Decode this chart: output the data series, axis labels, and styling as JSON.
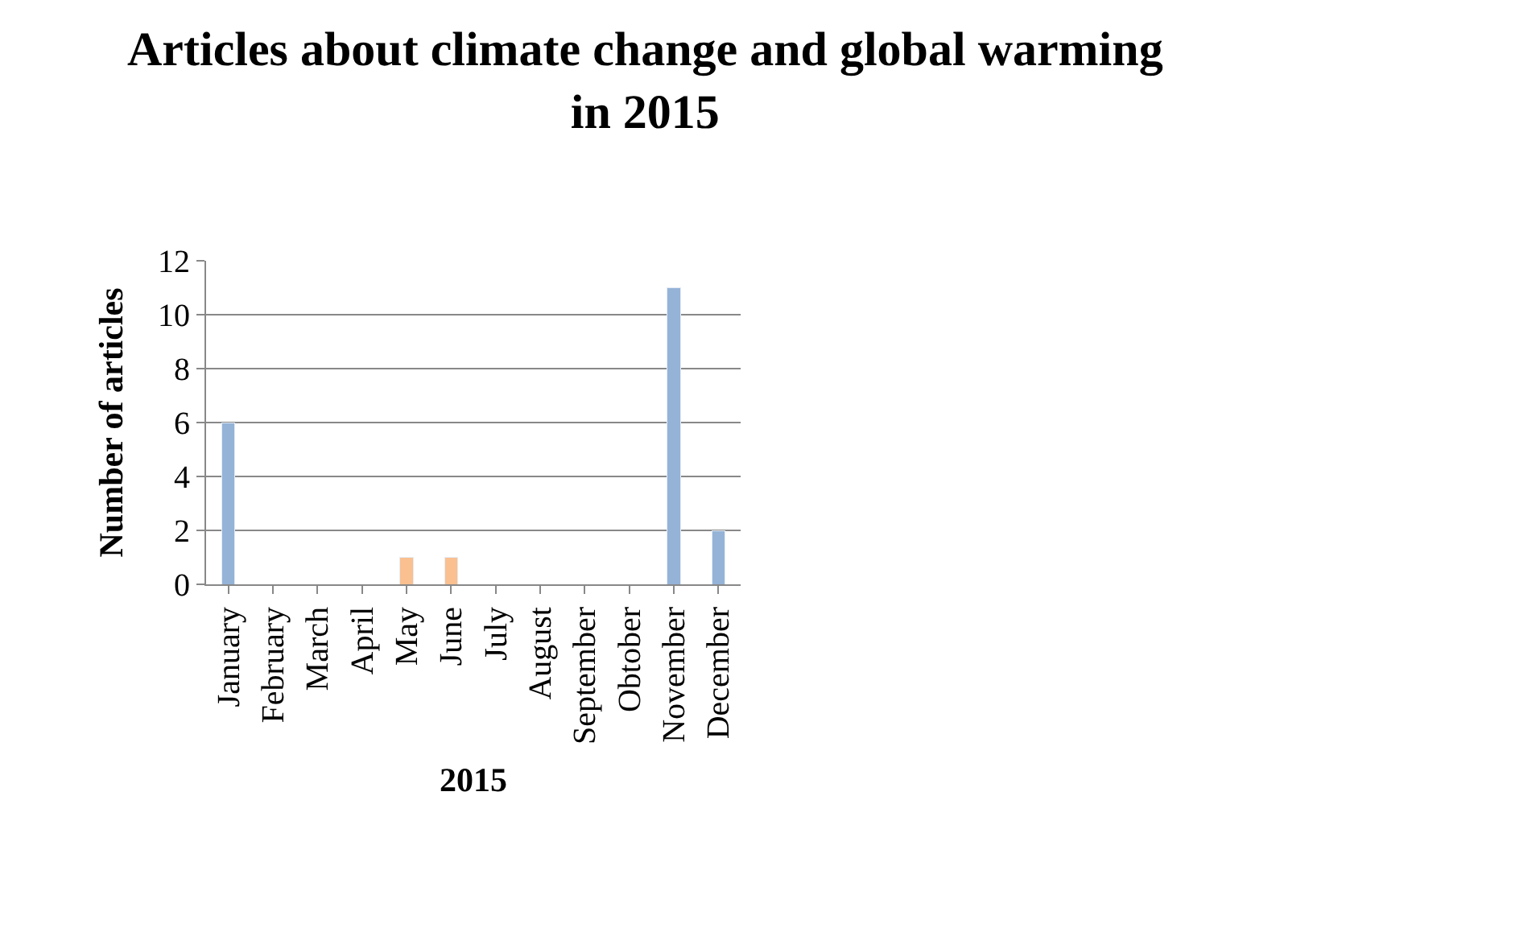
{
  "chart_data": {
    "type": "bar",
    "title": "Articles about climate change and global warming in 2015",
    "xlabel": "2015",
    "ylabel": "Number of articles",
    "categories": [
      "January",
      "February",
      "March",
      "April",
      "May",
      "June",
      "July",
      "August",
      "September",
      "Obtober",
      "November",
      "December"
    ],
    "stacked": true,
    "series": [
      {
        "color": "#fac090",
        "values": [
          null,
          null,
          null,
          null,
          1,
          1,
          null,
          null,
          null,
          null,
          null,
          null
        ]
      },
      {
        "color": "#95b3d7",
        "values": [
          6,
          null,
          null,
          null,
          null,
          null,
          null,
          null,
          null,
          null,
          11,
          2
        ]
      }
    ],
    "ylim": [
      0,
      12
    ],
    "yticks": [
      0,
      2,
      4,
      6,
      8,
      10,
      12
    ],
    "grid": "y"
  }
}
